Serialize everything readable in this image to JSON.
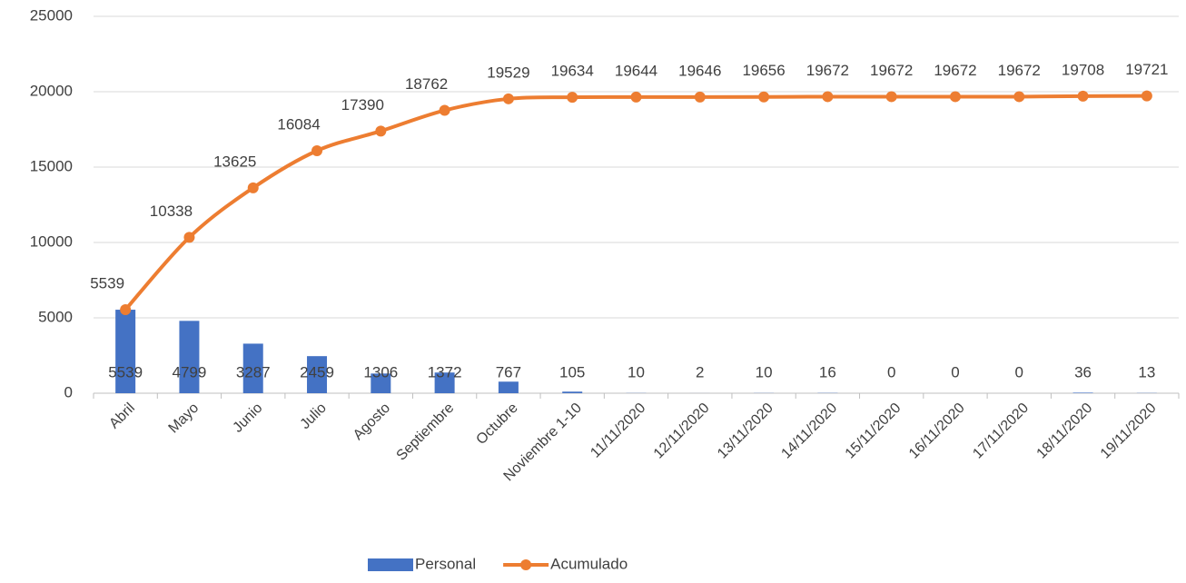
{
  "chart_data": {
    "type": "bar",
    "categories": [
      "Abril",
      "Mayo",
      "Junio",
      "Julio",
      "Agosto",
      "Septiembre",
      "Octubre",
      "Noviembre 1-10",
      "11/11/2020",
      "12/11/2020",
      "13/11/2020",
      "14/11/2020",
      "15/11/2020",
      "16/11/2020",
      "17/11/2020",
      "18/11/2020",
      "19/11/2020"
    ],
    "series": [
      {
        "name": "Personal",
        "type": "bar",
        "color": "#4472c4",
        "values": [
          5539,
          4799,
          3287,
          2459,
          1306,
          1372,
          767,
          105,
          10,
          2,
          10,
          16,
          0,
          0,
          0,
          36,
          13
        ]
      },
      {
        "name": "Acumulado",
        "type": "line",
        "color": "#ed7d31",
        "values": [
          5539,
          10338,
          13625,
          16084,
          17390,
          18762,
          19529,
          19634,
          19644,
          19646,
          19656,
          19672,
          19672,
          19672,
          19672,
          19708,
          19721
        ]
      }
    ],
    "ylim": [
      0,
      25000
    ],
    "yticks": [
      0,
      5000,
      10000,
      15000,
      20000,
      25000
    ],
    "grid": true,
    "legend": "bottom"
  }
}
